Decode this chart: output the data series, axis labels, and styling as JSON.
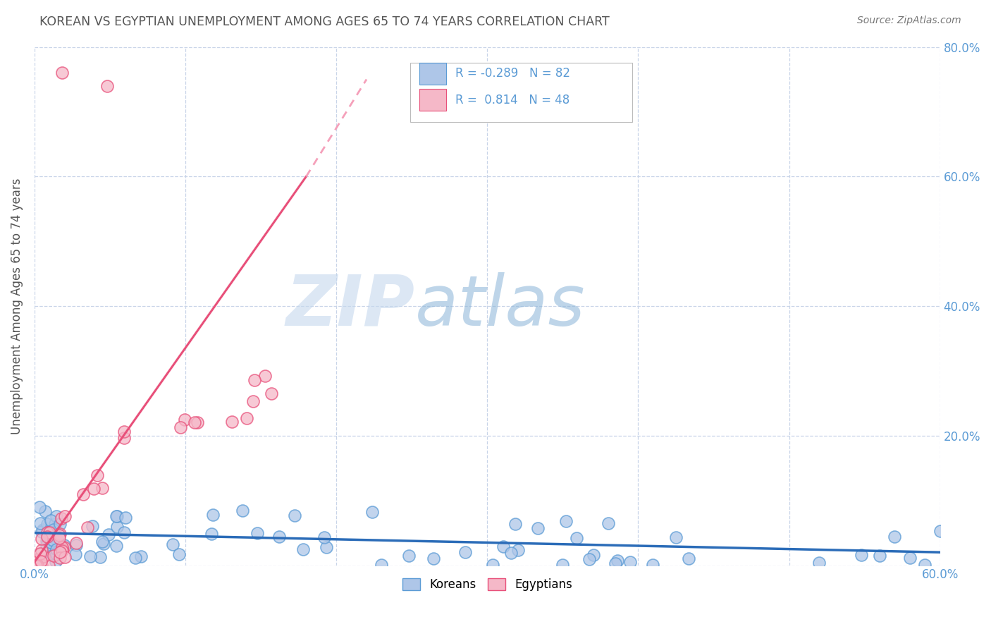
{
  "title": "KOREAN VS EGYPTIAN UNEMPLOYMENT AMONG AGES 65 TO 74 YEARS CORRELATION CHART",
  "source": "Source: ZipAtlas.com",
  "ylabel": "Unemployment Among Ages 65 to 74 years",
  "xlim": [
    0.0,
    0.6
  ],
  "ylim": [
    0.0,
    0.8
  ],
  "xticks": [
    0.0,
    0.1,
    0.2,
    0.3,
    0.4,
    0.5,
    0.6
  ],
  "xticklabels": [
    "0.0%",
    "",
    "",
    "",
    "",
    "",
    "60.0%"
  ],
  "yticks": [
    0.0,
    0.2,
    0.4,
    0.6,
    0.8
  ],
  "yticklabels_right": [
    "",
    "20.0%",
    "40.0%",
    "60.0%",
    "80.0%"
  ],
  "korean_color": "#aec6e8",
  "egyptian_color": "#f5b8c8",
  "korean_edge": "#5b9bd5",
  "egyptian_edge": "#e8507a",
  "trend_korean_color": "#2b6cb8",
  "trend_egyptian_color": "#e8507a",
  "trend_egyptian_dashed_color": "#f5a0ba",
  "R_korean": -0.289,
  "N_korean": 82,
  "R_egyptian": 0.814,
  "N_egyptian": 48,
  "watermark_zip": "ZIP",
  "watermark_atlas": "atlas",
  "background_color": "#ffffff",
  "grid_color": "#c8d4e8",
  "title_color": "#555555",
  "axis_tick_color": "#5b9bd5",
  "legend_label_korean": "Koreans",
  "legend_label_egyptian": "Egyptians",
  "trend_k_x0": 0.0,
  "trend_k_y0": 0.05,
  "trend_k_x1": 0.6,
  "trend_k_y1": 0.02,
  "trend_e_solid_x0": 0.0,
  "trend_e_solid_y0": 0.005,
  "trend_e_solid_x1": 0.18,
  "trend_e_solid_y1": 0.6,
  "trend_e_dash_x0": 0.18,
  "trend_e_dash_y0": 0.6,
  "trend_e_dash_x1": 0.22,
  "trend_e_dash_y1": 0.75
}
